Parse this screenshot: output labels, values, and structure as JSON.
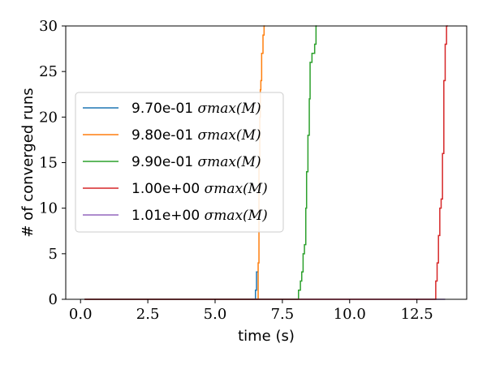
{
  "chart_data": {
    "type": "line",
    "xlabel": "time (s)",
    "ylabel": "# of converged runs",
    "xlim": [
      -0.55,
      14.35
    ],
    "ylim": [
      0,
      30
    ],
    "x_ticks": [
      0.0,
      2.5,
      5.0,
      7.5,
      10.0,
      12.5
    ],
    "x_tick_labels": [
      "0.0",
      "2.5",
      "5.0",
      "7.5",
      "10.0",
      "12.5"
    ],
    "y_ticks": [
      0,
      5,
      10,
      15,
      20,
      25,
      30
    ],
    "y_tick_labels": [
      "0",
      "5",
      "10",
      "15",
      "20",
      "25",
      "30"
    ],
    "grid": false,
    "legend_position": "center-left",
    "series": [
      {
        "name": "9.70e-01 σmax(M)",
        "prefix": "9.70e-01 ",
        "math": "σmax(M)",
        "color": "#1f77b4",
        "draw_order": 0,
        "x": [
          0.15,
          6.5,
          6.5,
          6.54,
          6.54,
          6.6
        ],
        "y": [
          0,
          0,
          1,
          1,
          3,
          3
        ]
      },
      {
        "name": "9.80e-01 σmax(M)",
        "prefix": "9.80e-01 ",
        "math": "σmax(M)",
        "color": "#ff7f0e",
        "draw_order": 1,
        "x": [
          0.15,
          6.6,
          6.6,
          6.63,
          6.63,
          6.66,
          6.66,
          6.68,
          6.68,
          6.7,
          6.7,
          6.73,
          6.73,
          6.78,
          6.78,
          6.82,
          6.82,
          6.85
        ],
        "y": [
          0,
          0,
          4,
          4,
          15,
          15,
          20,
          20,
          23,
          23,
          24,
          24,
          27,
          27,
          29,
          29,
          30,
          30
        ]
      },
      {
        "name": "9.90e-01 σmax(M)",
        "prefix": "9.90e-01 ",
        "math": "σmax(M)",
        "color": "#2ca02c",
        "draw_order": 2,
        "x": [
          0.15,
          8.1,
          8.1,
          8.17,
          8.17,
          8.22,
          8.22,
          8.27,
          8.27,
          8.32,
          8.32,
          8.37,
          8.37,
          8.4,
          8.4,
          8.45,
          8.45,
          8.5,
          8.5,
          8.53,
          8.53,
          8.6,
          8.6,
          8.7,
          8.7,
          8.75,
          8.75,
          8.78
        ],
        "y": [
          0,
          0,
          1,
          1,
          2,
          2,
          3,
          3,
          5,
          5,
          6,
          6,
          10,
          10,
          14,
          14,
          18,
          18,
          22,
          22,
          26,
          26,
          27,
          27,
          28,
          28,
          30,
          30
        ]
      },
      {
        "name": "1.00e+00 σmax(M)",
        "prefix": "1.00e+00 ",
        "math": "σmax(M)",
        "color": "#d62728",
        "draw_order": 4,
        "x": [
          0.15,
          13.2,
          13.2,
          13.25,
          13.25,
          13.3,
          13.3,
          13.35,
          13.35,
          13.4,
          13.4,
          13.45,
          13.45,
          13.5,
          13.5,
          13.55,
          13.55,
          13.6,
          13.6,
          13.65
        ],
        "y": [
          0,
          0,
          2,
          2,
          4,
          4,
          7,
          7,
          10,
          10,
          11,
          11,
          16,
          16,
          24,
          24,
          28,
          28,
          30,
          30
        ]
      },
      {
        "name": "1.01e+00 σmax(M)",
        "prefix": "1.01e+00 ",
        "math": "σmax(M)",
        "color": "#9467bd",
        "draw_order": 3,
        "x": [
          0.15,
          13.55
        ],
        "y": [
          0,
          0
        ]
      }
    ]
  }
}
